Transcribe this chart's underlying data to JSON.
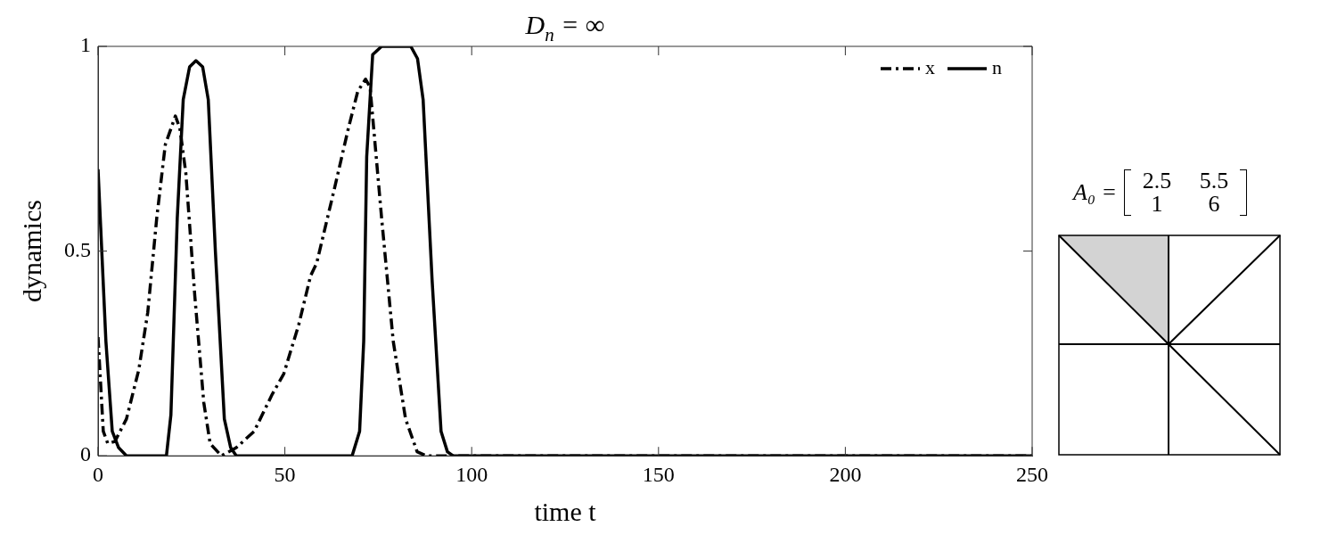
{
  "chart_data": {
    "type": "line",
    "title": "D$_{n}$ = ∞",
    "xlabel": "time t",
    "ylabel": "dynamics",
    "xlim": [
      0,
      250
    ],
    "ylim": [
      0,
      1
    ],
    "xticks": [
      0,
      50,
      100,
      150,
      200,
      250
    ],
    "yticks": [
      0,
      0.5,
      1
    ],
    "grid": false,
    "legend": "top right",
    "marker": "none",
    "annotations": [
      "A₀ =",
      "2.5",
      "5.5",
      "1",
      "6"
    ],
    "series": [
      {
        "name": "x",
        "color": "#000000",
        "line_style": "dashed",
        "x": [
          0,
          1.4,
          2.6,
          4.5,
          7.6,
          10.9,
          13.3,
          15.7,
          18,
          20.7,
          21.9,
          23.5,
          25.9,
          28.3,
          30,
          33,
          37,
          41.8,
          46.6,
          49.7,
          53.7,
          56.9,
          58.5,
          63.2,
          67,
          69.5,
          71.6,
          72.8,
          75.9,
          79,
          82.3,
          85.4,
          87.8,
          100,
          150,
          200,
          250
        ],
        "values": [
          0.29,
          0.06,
          0.03,
          0.035,
          0.09,
          0.21,
          0.35,
          0.58,
          0.76,
          0.83,
          0.8,
          0.69,
          0.39,
          0.13,
          0.03,
          0,
          0.02,
          0.06,
          0.15,
          0.2,
          0.32,
          0.44,
          0.47,
          0.65,
          0.8,
          0.89,
          0.92,
          0.9,
          0.58,
          0.28,
          0.09,
          0.01,
          0,
          0,
          0,
          0,
          0
        ]
      },
      {
        "name": "n",
        "color": "#000000",
        "line_style": "solid",
        "x": [
          0,
          2.1,
          3.8,
          5.5,
          7.6,
          12,
          18.3,
          19.5,
          21.2,
          22.8,
          24.5,
          26.2,
          28,
          29.5,
          31.4,
          33.8,
          35.5,
          37,
          50,
          68,
          70,
          71.1,
          71.9,
          73.5,
          75.9,
          80,
          83.7,
          85.5,
          87,
          89.4,
          91.8,
          93.5,
          95,
          150,
          200,
          250
        ],
        "values": [
          0.7,
          0.28,
          0.06,
          0.02,
          0,
          0,
          0,
          0.1,
          0.58,
          0.87,
          0.95,
          0.965,
          0.95,
          0.87,
          0.5,
          0.09,
          0.02,
          0,
          0,
          0,
          0.06,
          0.28,
          0.73,
          0.98,
          1,
          1,
          1,
          0.97,
          0.87,
          0.43,
          0.06,
          0.01,
          0,
          0,
          0,
          0
        ]
      }
    ]
  }
}
